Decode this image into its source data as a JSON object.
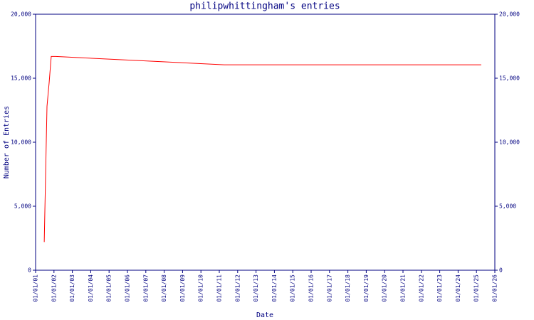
{
  "chart_data": {
    "type": "line",
    "title": "philipwhittingham's entries",
    "x_label": "Date",
    "y_label": "Number of Entries",
    "x": [
      0.47,
      0.62,
      0.74,
      0.85,
      1.09,
      10.27,
      24.26
    ],
    "series": [
      {
        "name": "entries",
        "color": "#ff0000",
        "values": [
          2200,
          12800,
          14700,
          16700,
          16700,
          16050,
          16050
        ]
      }
    ],
    "xlim": [
      0,
      25
    ],
    "xticks": [
      {
        "value": 0,
        "label": "01/01/01"
      },
      {
        "value": 1,
        "label": "01/01/02"
      },
      {
        "value": 2,
        "label": "01/01/03"
      },
      {
        "value": 3,
        "label": "01/01/04"
      },
      {
        "value": 4,
        "label": "01/01/05"
      },
      {
        "value": 5,
        "label": "01/01/06"
      },
      {
        "value": 6,
        "label": "01/01/07"
      },
      {
        "value": 7,
        "label": "01/01/08"
      },
      {
        "value": 8,
        "label": "01/01/09"
      },
      {
        "value": 9,
        "label": "01/01/10"
      },
      {
        "value": 10,
        "label": "01/01/11"
      },
      {
        "value": 11,
        "label": "01/01/12"
      },
      {
        "value": 12,
        "label": "01/01/13"
      },
      {
        "value": 13,
        "label": "01/01/14"
      },
      {
        "value": 14,
        "label": "01/01/15"
      },
      {
        "value": 15,
        "label": "01/01/16"
      },
      {
        "value": 16,
        "label": "01/01/17"
      },
      {
        "value": 17,
        "label": "01/01/18"
      },
      {
        "value": 18,
        "label": "01/01/19"
      },
      {
        "value": 19,
        "label": "01/01/20"
      },
      {
        "value": 20,
        "label": "01/01/21"
      },
      {
        "value": 21,
        "label": "01/01/22"
      },
      {
        "value": 22,
        "label": "01/01/23"
      },
      {
        "value": 23,
        "label": "01/01/24"
      },
      {
        "value": 24,
        "label": "01/01/25"
      },
      {
        "value": 25,
        "label": "01/01/26"
      }
    ],
    "ylim": [
      0,
      20000
    ],
    "yticks": [
      0,
      {
        "value": 5000,
        "label": "5,000"
      },
      {
        "value": 10000,
        "label": "10,000"
      },
      {
        "value": 15000,
        "label": "15,000"
      },
      {
        "value": 20000,
        "label": "20,000"
      }
    ],
    "y2lim": [
      0,
      20000
    ],
    "y2ticks": [
      0,
      {
        "value": 5000,
        "label": "5,000"
      },
      {
        "value": 10000,
        "label": "10,000"
      },
      {
        "value": 15000,
        "label": "15,000"
      },
      {
        "value": 20000,
        "label": "20,000"
      }
    ],
    "axis_color": "#000080"
  }
}
